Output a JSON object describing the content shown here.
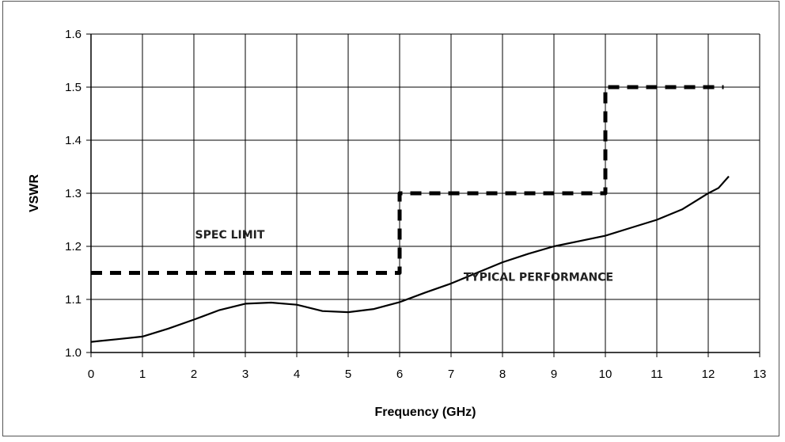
{
  "chart_data": {
    "type": "line",
    "title": "",
    "xlabel": "Frequency (GHz)",
    "ylabel": "VSWR",
    "xlim": [
      0,
      13
    ],
    "ylim": [
      1.0,
      1.6
    ],
    "x_ticks": [
      "0",
      "1",
      "2",
      "3",
      "4",
      "5",
      "6",
      "7",
      "8",
      "9",
      "10",
      "11",
      "12",
      "13"
    ],
    "y_ticks": [
      "1.0",
      "1.1",
      "1.2",
      "1.3",
      "1.4",
      "1.5",
      "1.6"
    ],
    "grid": true,
    "series": [
      {
        "style": "solid",
        "x": [
          0,
          0.5,
          1.0,
          1.5,
          2.0,
          2.5,
          3.0,
          3.5,
          4.0,
          4.5,
          5.0,
          5.5,
          6.0,
          6.5,
          7.0,
          7.5,
          8.0,
          8.5,
          9.0,
          9.5,
          10.0,
          10.5,
          11.0,
          11.5,
          12.0,
          12.2,
          12.4
        ],
        "y": [
          1.02,
          1.025,
          1.03,
          1.045,
          1.062,
          1.08,
          1.092,
          1.094,
          1.09,
          1.078,
          1.076,
          1.082,
          1.095,
          1.113,
          1.13,
          1.15,
          1.17,
          1.186,
          1.2,
          1.21,
          1.22,
          1.235,
          1.25,
          1.27,
          1.3,
          1.31,
          1.332
        ]
      },
      {
        "style": "dashed",
        "x": [
          0,
          6,
          6,
          10,
          10,
          12.3
        ],
        "y": [
          1.15,
          1.15,
          1.3,
          1.3,
          1.5,
          1.5
        ]
      }
    ],
    "annotations": [
      {
        "text": "SPEC LIMIT",
        "x": 2.7,
        "y": 1.215
      },
      {
        "text": "TYPICAL PERFORMANCE",
        "x": 8.7,
        "y": 1.135
      }
    ]
  }
}
